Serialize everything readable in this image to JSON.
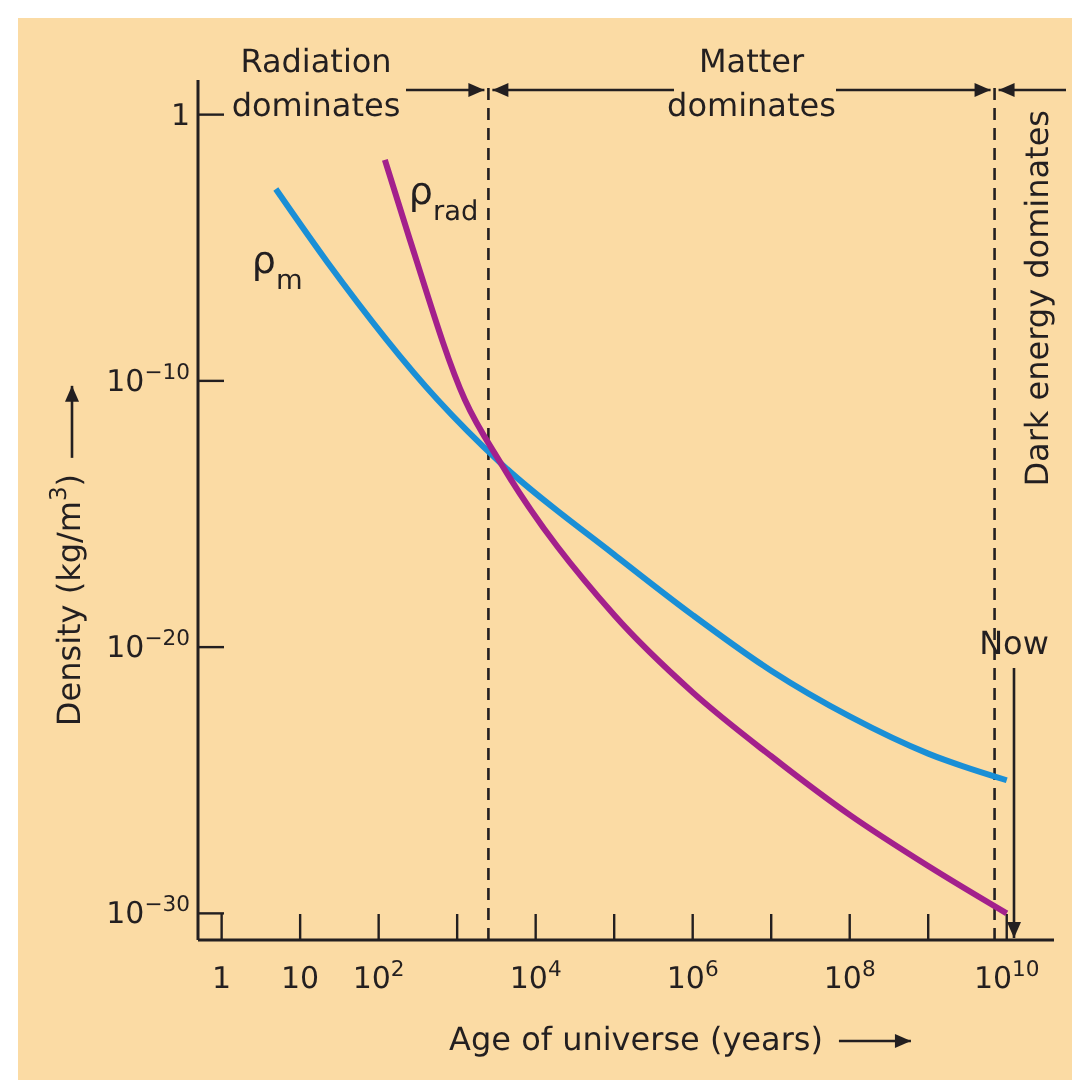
{
  "chart_data": {
    "type": "line",
    "log": "xy",
    "xlabel": "Age of universe (years)",
    "ylabel": "Density (kg/m$^{3}$)",
    "xlim": [
      0.5,
      40000000000
    ],
    "ylim": [
      1e-31,
      10
    ],
    "xticks": [
      1,
      10,
      {
        "value": 100,
        "label": "10$^{2}$"
      },
      {
        "value": 1000,
        "label": null
      },
      {
        "value": 10000,
        "label": "10$^{4}$"
      },
      {
        "value": 100000,
        "label": null
      },
      {
        "value": 1000000,
        "label": "10$^{6}$"
      },
      {
        "value": 10000000,
        "label": null
      },
      {
        "value": 100000000,
        "label": "10$^{8}$"
      },
      {
        "value": 1000000000,
        "label": null
      },
      {
        "value": 10000000000,
        "label": "10$^{10}$"
      }
    ],
    "yticks": [
      1,
      {
        "value": 1e-10,
        "label": "10$^{−10}$"
      },
      {
        "value": 1e-20,
        "label": "10$^{−20}$"
      },
      {
        "value": 1e-30,
        "label": "10$^{−30}$"
      }
    ],
    "grid": false,
    "legend": false,
    "series": [
      {
        "name": "ρ$_{m}$",
        "color": "#1a8fd6",
        "x": [
          4.9,
          22,
          560,
          3600,
          100000,
          1000000,
          10000000,
          100000000,
          1000000000,
          10000000000
        ],
        "values": [
          0.0016,
          3e-06,
          2e-11,
          8e-14,
          3e-17,
          1.6e-19,
          1.3e-21,
          2.5e-23,
          1e-24,
          1e-25
        ]
      },
      {
        "name": "ρ$_{rad}$",
        "color": "#a3208c",
        "x": [
          120,
          250,
          1250,
          3600,
          100000,
          1000000,
          10000000,
          100000000,
          1000000000,
          10000000000
        ],
        "values": [
          0.02,
          2e-05,
          2e-11,
          8e-14,
          1.6e-19,
          2e-22,
          8e-25,
          5e-27,
          6e-29,
          1e-30
        ]
      }
    ],
    "ref_lines": [
      {
        "axis": "x",
        "value": 2500,
        "line_style": "dashed",
        "color": "#231f20"
      },
      {
        "axis": "x",
        "value": 7000000000,
        "line_style": "dashed",
        "color": "#231f20"
      }
    ],
    "annotations": [
      "Radiation dominates",
      "Matter dominates",
      "Dark energy dominates",
      "Now"
    ]
  }
}
